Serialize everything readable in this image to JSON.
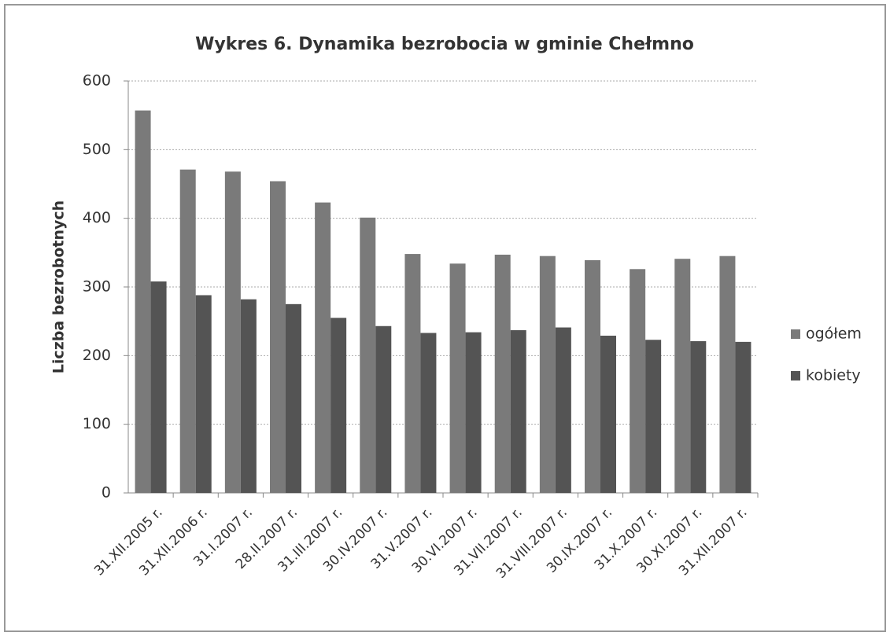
{
  "chart_data": {
    "type": "bar",
    "title": "Wykres 6. Dynamika bezrobocia w gminie Chełmno",
    "y_label": "Liczba bezrobotnych",
    "categories": [
      "31.XII.2005 r.",
      "31.XII.2006 r.",
      "31.I.2007 r.",
      "28.II.2007 r.",
      "31.III.2007 r.",
      "30.IV.2007 r.",
      "31.V.2007 r.",
      "30.VI.2007 r.",
      "31.VII.2007 r.",
      "31.VIII.2007 r.",
      "30.IX.2007 r.",
      "31.X.2007 r.",
      "30.XI.2007 r.",
      "31.XII.2007 r."
    ],
    "series": [
      {
        "name": "ogółem",
        "color": "#7a7a7a",
        "values": [
          557,
          471,
          468,
          454,
          423,
          401,
          348,
          334,
          347,
          345,
          339,
          326,
          341,
          345
        ]
      },
      {
        "name": "kobiety",
        "color": "#545454",
        "values": [
          308,
          288,
          282,
          275,
          255,
          243,
          233,
          234,
          237,
          241,
          229,
          223,
          221,
          220
        ]
      }
    ],
    "ylim": [
      0,
      600
    ],
    "yticks": [
      0,
      100,
      200,
      300,
      400,
      500,
      600
    ],
    "grid": true,
    "legend": "right"
  }
}
